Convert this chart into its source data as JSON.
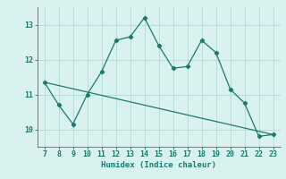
{
  "x_curve": [
    7,
    8,
    9,
    10,
    11,
    12,
    13,
    14,
    15,
    16,
    17,
    18,
    19,
    20,
    21,
    22,
    23
  ],
  "y_curve": [
    11.35,
    10.7,
    10.15,
    11.0,
    11.65,
    12.55,
    12.65,
    13.2,
    12.4,
    11.75,
    11.8,
    12.55,
    12.2,
    11.15,
    10.75,
    9.8,
    9.85
  ],
  "trend_x": [
    7,
    23
  ],
  "trend_y": [
    11.35,
    9.85
  ],
  "line_color": "#1a7a6e",
  "bg_color": "#d9f2f0",
  "grid_color": "#b8deda",
  "xlabel": "Humidex (Indice chaleur)",
  "yticks": [
    10,
    11,
    12,
    13
  ],
  "xticks": [
    7,
    8,
    9,
    10,
    11,
    12,
    13,
    14,
    15,
    16,
    17,
    18,
    19,
    20,
    21,
    22,
    23
  ],
  "xlim": [
    6.5,
    23.5
  ],
  "ylim": [
    9.5,
    13.5
  ]
}
